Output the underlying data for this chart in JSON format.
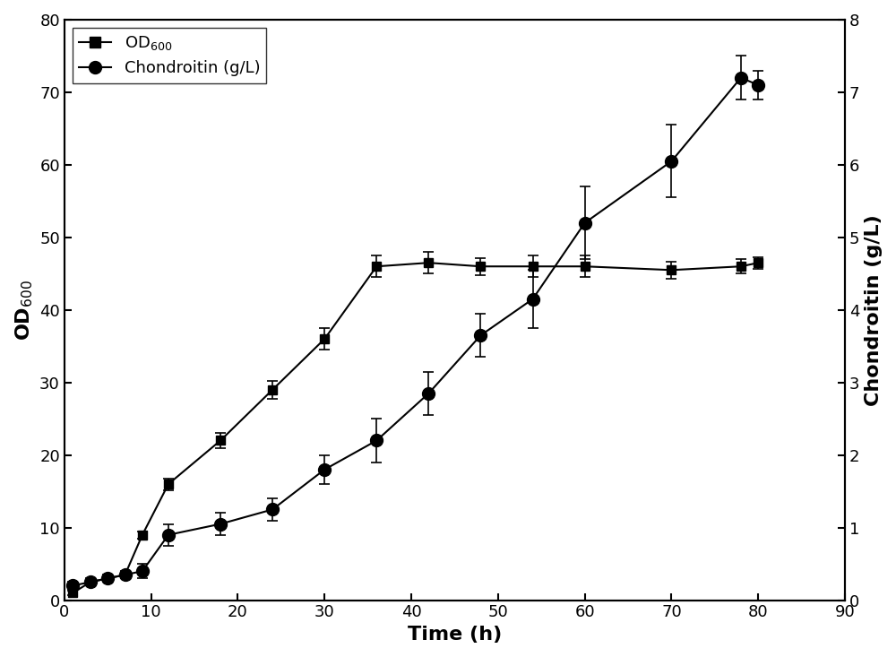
{
  "time_od": [
    1,
    3,
    5,
    7,
    9,
    12,
    18,
    24,
    30,
    36,
    42,
    48,
    54,
    60,
    70,
    78,
    80
  ],
  "od_values": [
    1.0,
    2.5,
    3.0,
    3.5,
    9.0,
    16.0,
    22.0,
    29.0,
    36.0,
    46.0,
    46.5,
    46.0,
    46.0,
    46.0,
    45.5,
    46.0,
    46.5
  ],
  "od_errors": [
    0.3,
    0.3,
    0.3,
    0.4,
    0.5,
    0.8,
    1.0,
    1.2,
    1.5,
    1.5,
    1.5,
    1.2,
    1.5,
    1.5,
    1.2,
    1.0,
    0.8
  ],
  "time_ch": [
    1,
    3,
    5,
    7,
    9,
    12,
    18,
    24,
    30,
    36,
    42,
    48,
    54,
    60,
    70,
    78,
    80
  ],
  "ch_values": [
    0.2,
    0.25,
    0.3,
    0.35,
    0.4,
    0.9,
    1.05,
    1.25,
    1.8,
    2.2,
    2.85,
    3.65,
    4.15,
    5.2,
    6.05,
    7.2,
    7.1
  ],
  "ch_errors": [
    0.05,
    0.05,
    0.05,
    0.05,
    0.1,
    0.15,
    0.15,
    0.15,
    0.2,
    0.3,
    0.3,
    0.3,
    0.4,
    0.5,
    0.5,
    0.3,
    0.2
  ],
  "od_color": "#000000",
  "ch_color": "#000000",
  "line_color": "#888888",
  "xlabel": "Time (h)",
  "ylabel_left": "OD$_{600}$",
  "ylabel_right": "Chondroitin (g/L)",
  "legend_od": "OD$_{600}$",
  "legend_ch": "Chondroitin (g/L)",
  "xlim": [
    0,
    90
  ],
  "ylim_left": [
    0,
    80
  ],
  "ylim_right": [
    0,
    8
  ],
  "xticks": [
    0,
    10,
    20,
    30,
    40,
    50,
    60,
    70,
    80,
    90
  ],
  "yticks_left": [
    0,
    10,
    20,
    30,
    40,
    50,
    60,
    70,
    80
  ],
  "yticks_right": [
    0,
    1,
    2,
    3,
    4,
    5,
    6,
    7,
    8
  ],
  "bg_color": "#ffffff",
  "figsize": [
    10.0,
    7.33
  ]
}
